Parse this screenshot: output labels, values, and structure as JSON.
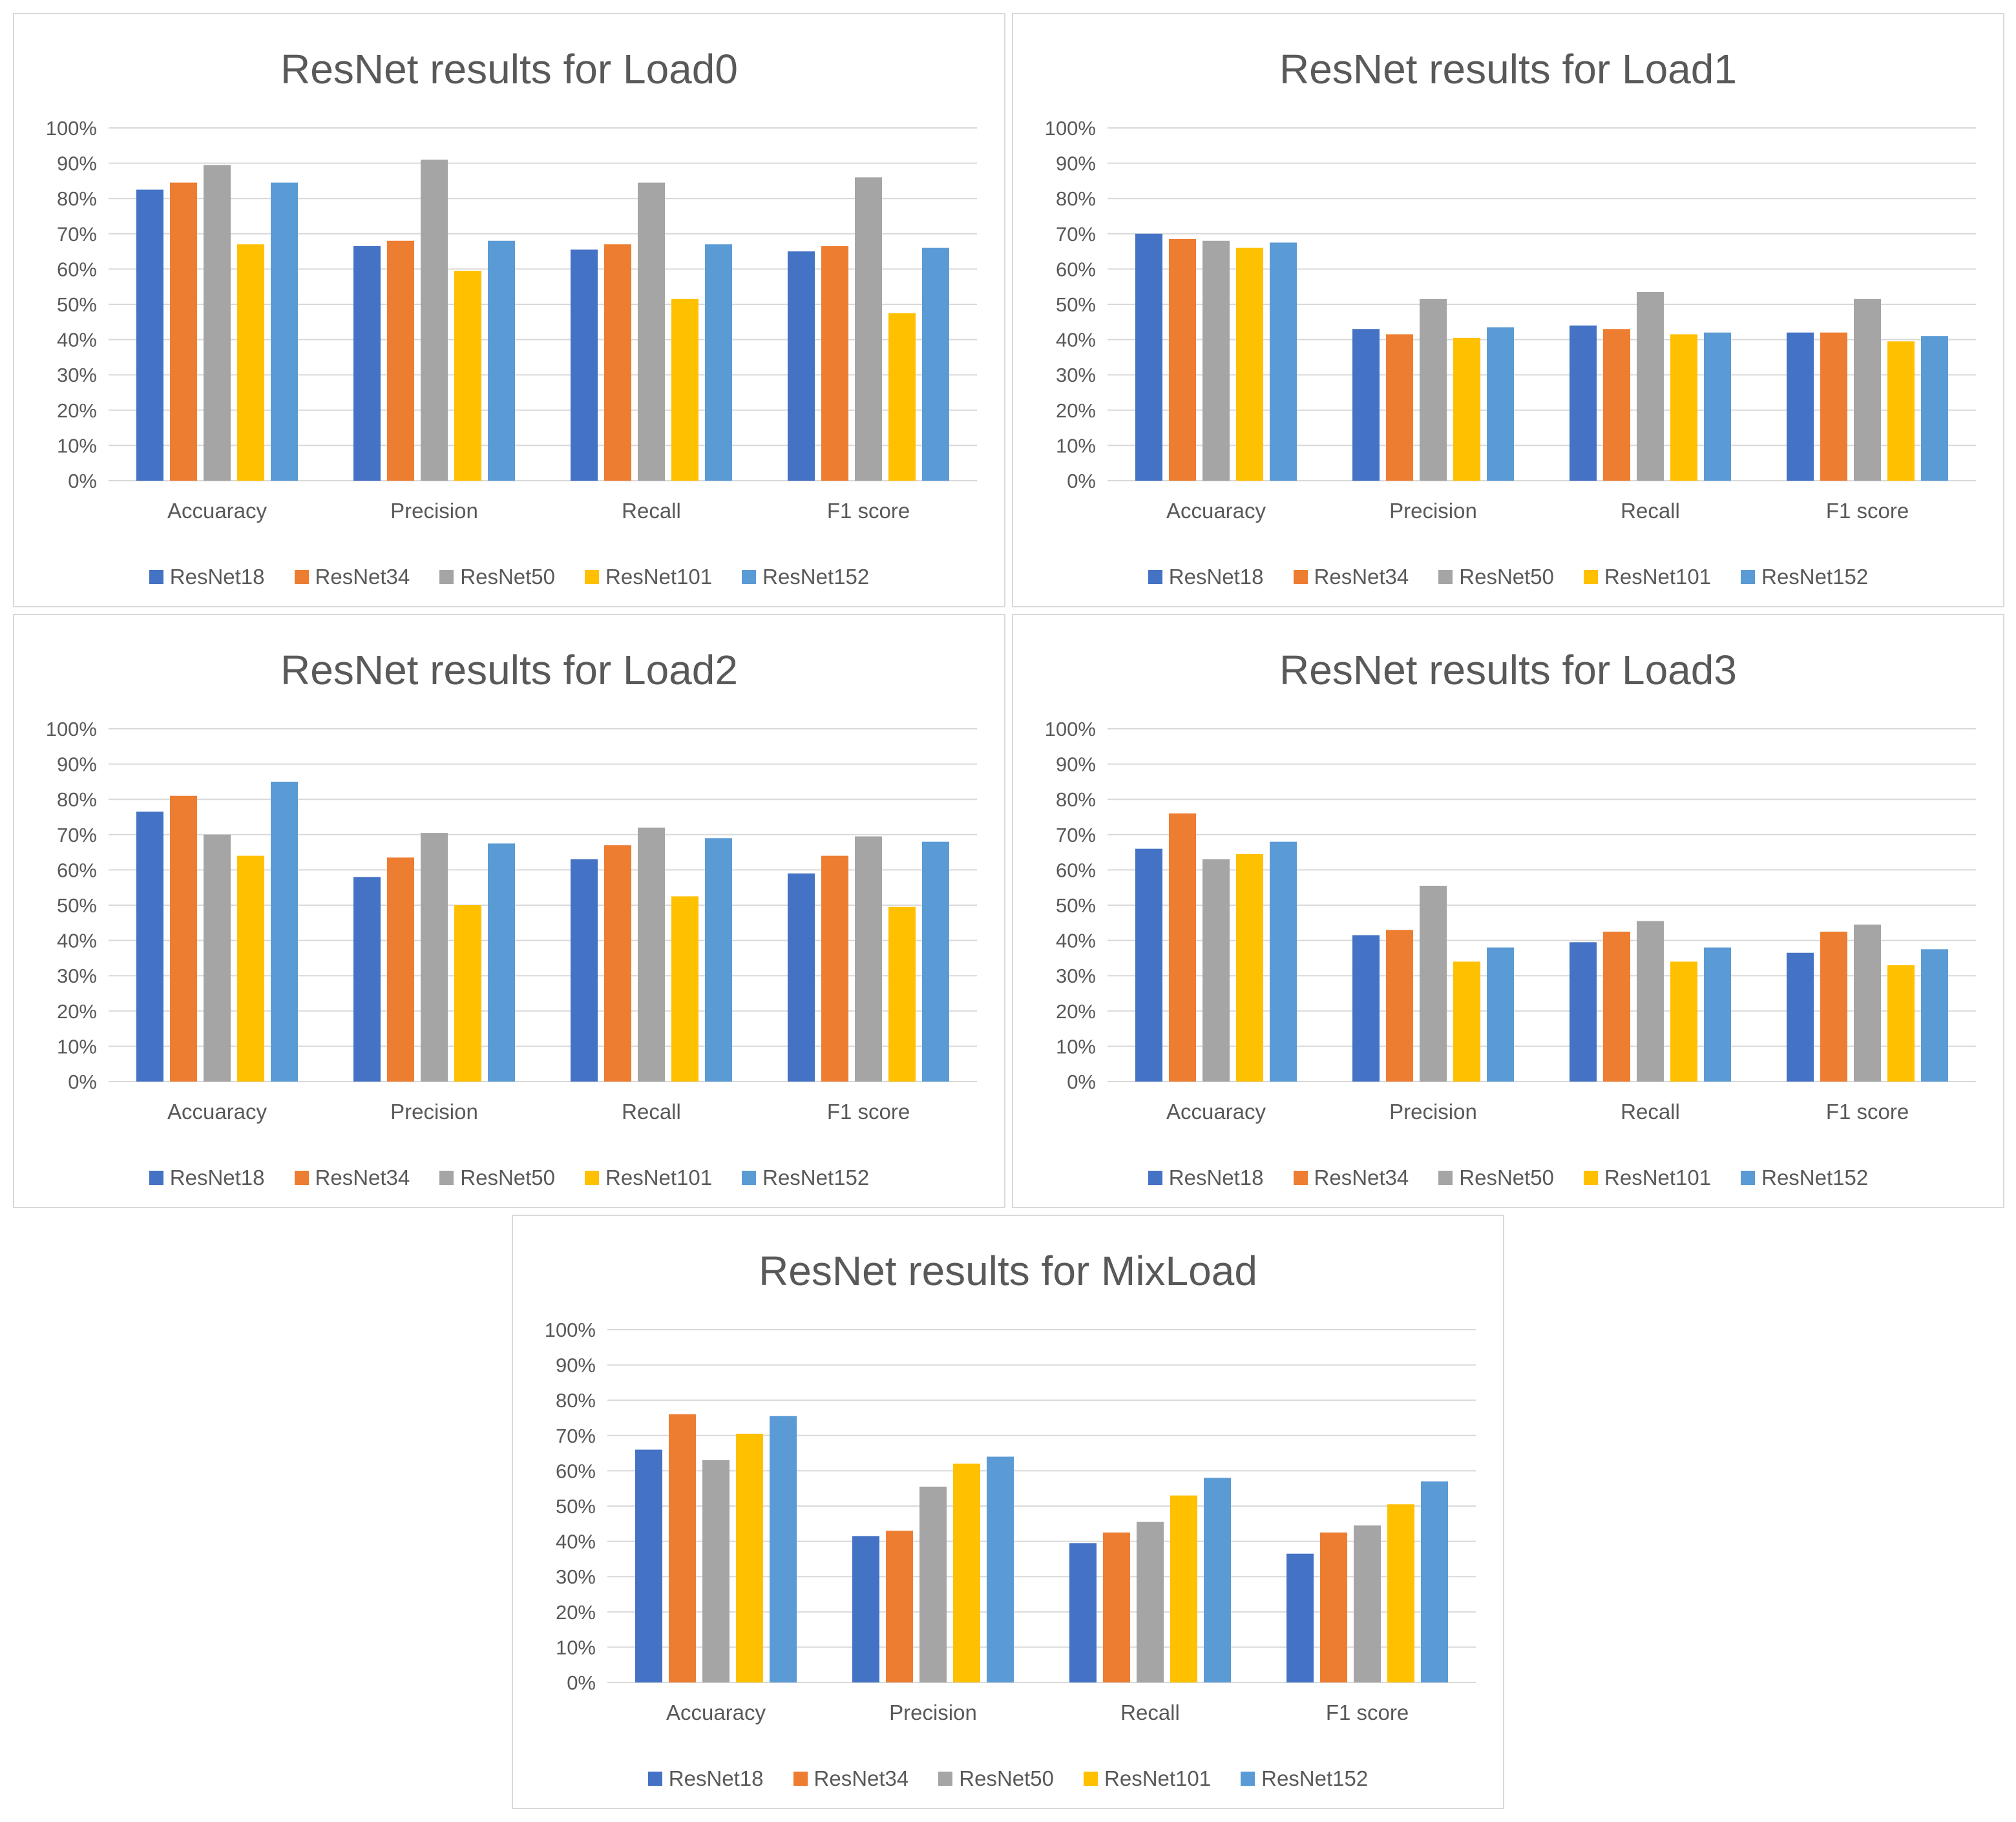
{
  "colors": {
    "ResNet18": "#4472C4",
    "ResNet34": "#ED7D31",
    "ResNet50": "#A5A5A5",
    "ResNet101": "#FFC000",
    "ResNet152": "#5B9BD5",
    "grid": "#d9d9d9",
    "text": "#595959"
  },
  "chart_data": [
    {
      "type": "bar",
      "title": "ResNet results for Load0",
      "categories": [
        "Accuaracy",
        "Precision",
        "Recall",
        "F1 score"
      ],
      "ylim": [
        0,
        100
      ],
      "yticks": [
        "0%",
        "10%",
        "20%",
        "30%",
        "40%",
        "50%",
        "60%",
        "70%",
        "80%",
        "90%",
        "100%"
      ],
      "grid": true,
      "legend": "bottom",
      "series": [
        {
          "name": "ResNet18",
          "values": [
            82.5,
            66.5,
            65.5,
            65
          ]
        },
        {
          "name": "ResNet34",
          "values": [
            84.5,
            68,
            67,
            66.5
          ]
        },
        {
          "name": "ResNet50",
          "values": [
            89.5,
            91,
            84.5,
            86
          ]
        },
        {
          "name": "ResNet101",
          "values": [
            67,
            59.5,
            51.5,
            47.5
          ]
        },
        {
          "name": "ResNet152",
          "values": [
            84.5,
            68,
            67,
            66
          ]
        }
      ]
    },
    {
      "type": "bar",
      "title": "ResNet results for Load1",
      "categories": [
        "Accuaracy",
        "Precision",
        "Recall",
        "F1 score"
      ],
      "ylim": [
        0,
        100
      ],
      "yticks": [
        "0%",
        "10%",
        "20%",
        "30%",
        "40%",
        "50%",
        "60%",
        "70%",
        "80%",
        "90%",
        "100%"
      ],
      "grid": true,
      "legend": "bottom",
      "series": [
        {
          "name": "ResNet18",
          "values": [
            70,
            43,
            44,
            42
          ]
        },
        {
          "name": "ResNet34",
          "values": [
            68.5,
            41.5,
            43,
            42
          ]
        },
        {
          "name": "ResNet50",
          "values": [
            68,
            51.5,
            53.5,
            51.5
          ]
        },
        {
          "name": "ResNet101",
          "values": [
            66,
            40.5,
            41.5,
            39.5
          ]
        },
        {
          "name": "ResNet152",
          "values": [
            67.5,
            43.5,
            42,
            41
          ]
        }
      ]
    },
    {
      "type": "bar",
      "title": "ResNet results for Load2",
      "categories": [
        "Accuaracy",
        "Precision",
        "Recall",
        "F1 score"
      ],
      "ylim": [
        0,
        100
      ],
      "yticks": [
        "0%",
        "10%",
        "20%",
        "30%",
        "40%",
        "50%",
        "60%",
        "70%",
        "80%",
        "90%",
        "100%"
      ],
      "grid": true,
      "legend": "bottom",
      "series": [
        {
          "name": "ResNet18",
          "values": [
            76.5,
            58,
            63,
            59
          ]
        },
        {
          "name": "ResNet34",
          "values": [
            81,
            63.5,
            67,
            64
          ]
        },
        {
          "name": "ResNet50",
          "values": [
            70,
            70.5,
            72,
            69.5
          ]
        },
        {
          "name": "ResNet101",
          "values": [
            64,
            50,
            52.5,
            49.5
          ]
        },
        {
          "name": "ResNet152",
          "values": [
            85,
            67.5,
            69,
            68
          ]
        }
      ]
    },
    {
      "type": "bar",
      "title": "ResNet results for Load3",
      "categories": [
        "Accuaracy",
        "Precision",
        "Recall",
        "F1 score"
      ],
      "ylim": [
        0,
        100
      ],
      "yticks": [
        "0%",
        "10%",
        "20%",
        "30%",
        "40%",
        "50%",
        "60%",
        "70%",
        "80%",
        "90%",
        "100%"
      ],
      "grid": true,
      "legend": "bottom",
      "series": [
        {
          "name": "ResNet18",
          "values": [
            66,
            41.5,
            39.5,
            36.5
          ]
        },
        {
          "name": "ResNet34",
          "values": [
            76,
            43,
            42.5,
            42.5
          ]
        },
        {
          "name": "ResNet50",
          "values": [
            63,
            55.5,
            45.5,
            44.5
          ]
        },
        {
          "name": "ResNet101",
          "values": [
            64.5,
            34,
            34,
            33
          ]
        },
        {
          "name": "ResNet152",
          "values": [
            68,
            38,
            38,
            37.5
          ]
        }
      ]
    },
    {
      "type": "bar",
      "title": "ResNet results for MixLoad",
      "categories": [
        "Accuaracy",
        "Precision",
        "Recall",
        "F1 score"
      ],
      "ylim": [
        0,
        100
      ],
      "yticks": [
        "0%",
        "10%",
        "20%",
        "30%",
        "40%",
        "50%",
        "60%",
        "70%",
        "80%",
        "90%",
        "100%"
      ],
      "grid": true,
      "legend": "bottom",
      "series": [
        {
          "name": "ResNet18",
          "values": [
            66,
            41.5,
            39.5,
            36.5
          ]
        },
        {
          "name": "ResNet34",
          "values": [
            76,
            43,
            42.5,
            42.5
          ]
        },
        {
          "name": "ResNet50",
          "values": [
            63,
            55.5,
            45.5,
            44.5
          ]
        },
        {
          "name": "ResNet101",
          "values": [
            70.5,
            62,
            53,
            50.5
          ]
        },
        {
          "name": "ResNet152",
          "values": [
            75.5,
            64,
            58,
            57
          ]
        }
      ]
    }
  ]
}
